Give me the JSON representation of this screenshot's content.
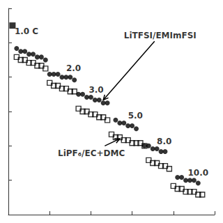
{
  "chart_data": {
    "type": "scatter",
    "xlim": [
      0,
      50
    ],
    "xticks": [
      0,
      10,
      20,
      30,
      40,
      50
    ],
    "ylim": [
      0.3,
      1.02
    ],
    "yticks": [
      0.3,
      0.42,
      0.54,
      0.66,
      0.78,
      0.9,
      1.02
    ],
    "tick_labels": false,
    "grid": false,
    "series": [
      {
        "color": "#000000",
        "marker": "square",
        "x": [
          1
        ],
        "values": [
          0.96
        ]
      },
      {
        "color": "#000000",
        "marker": "circle",
        "x": [
          2,
          3,
          4,
          5,
          6,
          7,
          8,
          9
        ],
        "values": [
          0.88,
          0.87,
          0.87,
          0.86,
          0.86,
          0.85,
          0.85,
          0.84
        ]
      },
      {
        "color": "#000000",
        "marker": "circle",
        "x": [
          10,
          11,
          12,
          13,
          14,
          15,
          16
        ],
        "values": [
          0.79,
          0.79,
          0.79,
          0.78,
          0.78,
          0.78,
          0.77
        ]
      },
      {
        "color": "#000000",
        "marker": "circle",
        "x": [
          17,
          18,
          19,
          20,
          21,
          22,
          23,
          24
        ],
        "values": [
          0.72,
          0.72,
          0.71,
          0.71,
          0.7,
          0.7,
          0.69,
          0.69
        ]
      },
      {
        "color": "#000000",
        "marker": "circle",
        "x": [
          26,
          27,
          28,
          29,
          30,
          31
        ],
        "values": [
          0.63,
          0.62,
          0.62,
          0.61,
          0.61,
          0.6
        ]
      },
      {
        "color": "#000000",
        "marker": "circle",
        "x": [
          33,
          34,
          35,
          36,
          37,
          38
        ],
        "values": [
          0.54,
          0.54,
          0.53,
          0.53,
          0.52,
          0.52
        ]
      },
      {
        "color": "#000000",
        "marker": "circle",
        "x": [
          41,
          42,
          43,
          44,
          45,
          46
        ],
        "values": [
          0.43,
          0.43,
          0.42,
          0.42,
          0.42,
          0.41
        ]
      },
      {
        "color": "#000000",
        "marker": "open_square",
        "x": [
          2,
          3,
          4,
          5,
          6,
          7,
          8,
          9
        ],
        "values": [
          0.85,
          0.84,
          0.84,
          0.83,
          0.83,
          0.82,
          0.82,
          0.81
        ]
      },
      {
        "color": "#000000",
        "marker": "open_square",
        "x": [
          10,
          11,
          12,
          13,
          14,
          15,
          16
        ],
        "values": [
          0.76,
          0.75,
          0.75,
          0.74,
          0.74,
          0.73,
          0.73
        ]
      },
      {
        "color": "#000000",
        "marker": "open_square",
        "x": [
          17,
          18,
          19,
          20,
          21,
          22,
          23,
          24
        ],
        "values": [
          0.67,
          0.66,
          0.66,
          0.65,
          0.65,
          0.64,
          0.64,
          0.63
        ]
      },
      {
        "color": "#000000",
        "marker": "open_square",
        "x": [
          25,
          26,
          27,
          28,
          29,
          30,
          31,
          32,
          33
        ],
        "values": [
          0.58,
          0.57,
          0.57,
          0.56,
          0.56,
          0.55,
          0.55,
          0.55,
          0.54
        ]
      },
      {
        "color": "#000000",
        "marker": "open_square",
        "x": [
          34,
          35,
          36,
          37,
          38,
          39
        ],
        "values": [
          0.49,
          0.48,
          0.48,
          0.47,
          0.47,
          0.46
        ]
      },
      {
        "color": "#000000",
        "marker": "open_square",
        "x": [
          40,
          41,
          42,
          43,
          44,
          45,
          46,
          47
        ],
        "values": [
          0.4,
          0.39,
          0.39,
          0.38,
          0.38,
          0.38,
          0.37,
          0.37
        ]
      }
    ],
    "annotations": [
      {
        "text": "1.0 C",
        "x": 1.5,
        "y": 0.94
      },
      {
        "text": "2.0",
        "x": 14.0,
        "y": 0.81
      },
      {
        "text": "3.0",
        "x": 19.5,
        "y": 0.735
      },
      {
        "text": "5.0",
        "x": 29.0,
        "y": 0.645
      },
      {
        "text": "8.0",
        "x": 36.0,
        "y": 0.555
      },
      {
        "text": "10.0",
        "x": 43.5,
        "y": 0.445
      },
      {
        "text": "LiTFSI/EMImFSI",
        "x": 28,
        "y": 0.91,
        "arrow_to": [
          23,
          0.7
        ]
      },
      {
        "text": "LiPF₆/EC+DMC",
        "x": 12,
        "y": 0.5,
        "arrow_to": [
          27,
          0.565
        ]
      }
    ]
  }
}
